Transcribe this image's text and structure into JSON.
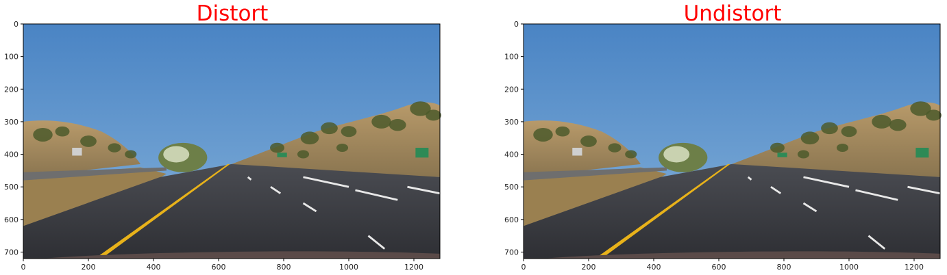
{
  "chart_data": [
    {
      "type": "image",
      "title": "Distort",
      "title_color": "#ff0000",
      "xlim": [
        0,
        1280
      ],
      "ylim": [
        720,
        0
      ],
      "xticks": [
        0,
        200,
        400,
        600,
        800,
        1000,
        1200
      ],
      "yticks": [
        0,
        100,
        200,
        300,
        400,
        500,
        600,
        700
      ],
      "grid": false,
      "image": "road-scene-highway-lanes"
    },
    {
      "type": "image",
      "title": "Undistort",
      "title_color": "#ff0000",
      "xlim": [
        0,
        1280
      ],
      "ylim": [
        720,
        0
      ],
      "xticks": [
        0,
        200,
        400,
        600,
        800,
        1000,
        1200
      ],
      "yticks": [
        0,
        100,
        200,
        300,
        400,
        500,
        600,
        700
      ],
      "grid": false,
      "image": "road-scene-highway-lanes"
    }
  ]
}
